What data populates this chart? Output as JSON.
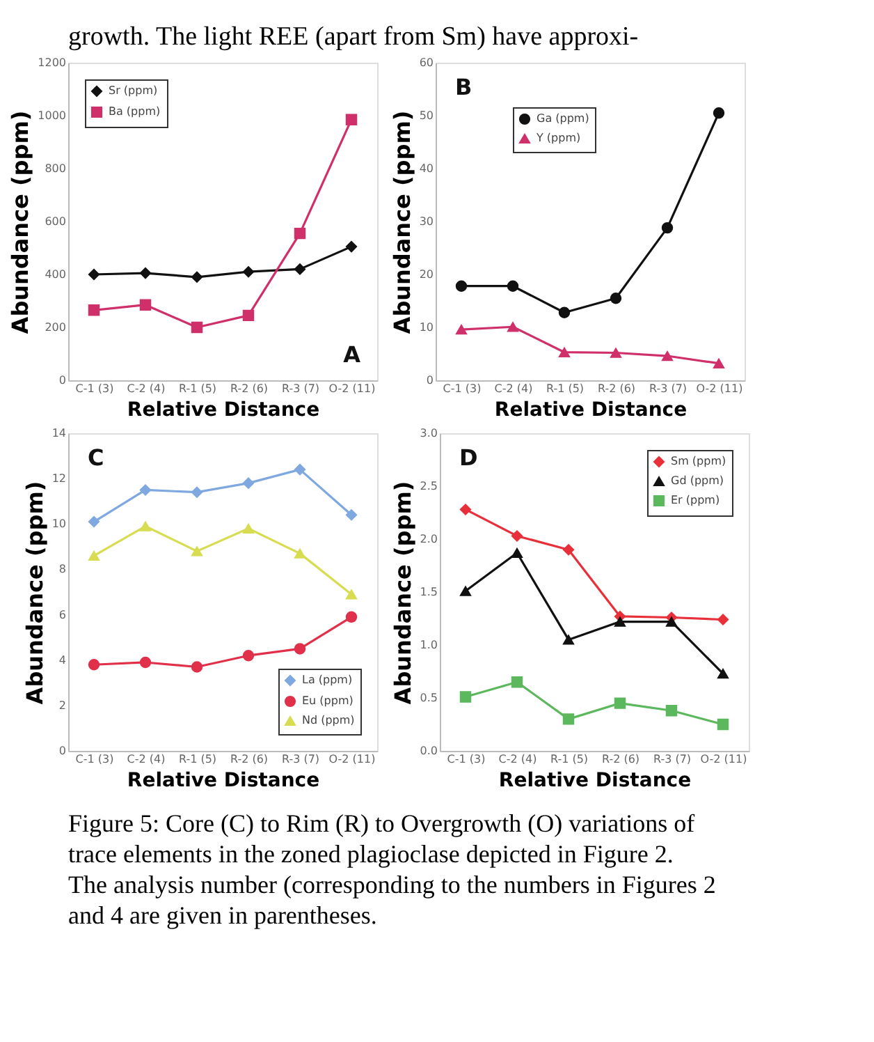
{
  "chart_data": [
    {
      "type": "line",
      "categories": [
        "C-1 (3)",
        "C-2 (4)",
        "R-1 (5)",
        "R-2 (6)",
        "R-3 (7)",
        "O-2 (11)"
      ],
      "xlabel": "Relative Distance",
      "ylabel": "Abundance (ppm)",
      "ylim": [
        0,
        1200
      ],
      "yticks": [
        0,
        200,
        400,
        600,
        800,
        1000,
        1200
      ],
      "grid": false,
      "legend": "top left",
      "annotations": [
        "A",
        "growth. The light REE (apart from Sm) have approxi-"
      ],
      "series": [
        {
          "name": "Sr (ppm)",
          "color": "#111111",
          "marker": "diamond",
          "values": [
            400,
            405,
            390,
            410,
            420,
            505
          ]
        },
        {
          "name": "Ba (ppm)",
          "color": "#d0306a",
          "marker": "square",
          "values": [
            265,
            285,
            200,
            245,
            555,
            985
          ]
        }
      ]
    },
    {
      "type": "line",
      "categories": [
        "C-1 (3)",
        "C-2 (4)",
        "R-1 (5)",
        "R-2 (6)",
        "R-3 (7)",
        "O-2 (11)"
      ],
      "xlabel": "Relative Distance",
      "ylabel": "Abundance (ppm)",
      "ylim": [
        0,
        60
      ],
      "yticks": [
        0,
        10,
        20,
        30,
        40,
        50,
        60
      ],
      "grid": false,
      "legend": "top",
      "annotations": [
        "B"
      ],
      "series": [
        {
          "name": "Ga (ppm)",
          "color": "#111111",
          "marker": "circle",
          "values": [
            17.8,
            17.8,
            12.8,
            15.5,
            28.8,
            50.5
          ]
        },
        {
          "name": "Y (ppm)",
          "color": "#d0306a",
          "marker": "triangle",
          "values": [
            9.6,
            10.1,
            5.3,
            5.2,
            4.6,
            3.2
          ]
        }
      ]
    },
    {
      "type": "line",
      "categories": [
        "C-1 (3)",
        "C-2 (4)",
        "R-1 (5)",
        "R-2 (6)",
        "R-3 (7)",
        "O-2 (11)"
      ],
      "xlabel": "Relative Distance",
      "ylabel": "Abundance (ppm)",
      "ylim": [
        0,
        14
      ],
      "yticks": [
        0,
        2,
        4,
        6,
        8,
        10,
        12,
        14
      ],
      "grid": false,
      "legend": "bottom right",
      "annotations": [
        "C"
      ],
      "series": [
        {
          "name": "La (ppm)",
          "color": "#7fa8e0",
          "marker": "diamond",
          "values": [
            10.1,
            11.5,
            11.4,
            11.8,
            12.4,
            10.4
          ]
        },
        {
          "name": "Eu (ppm)",
          "color": "#e0304a",
          "marker": "circle",
          "values": [
            3.8,
            3.9,
            3.7,
            4.2,
            4.5,
            5.9
          ]
        },
        {
          "name": "Nd (ppm)",
          "color": "#d8dc50",
          "marker": "triangle",
          "values": [
            8.6,
            9.9,
            8.8,
            9.8,
            8.7,
            6.9
          ]
        }
      ]
    },
    {
      "type": "line",
      "categories": [
        "C-1 (3)",
        "C-2 (4)",
        "R-1 (5)",
        "R-2 (6)",
        "R-3 (7)",
        "O-2 (11)"
      ],
      "xlabel": "Relative Distance",
      "ylabel": "Abundance (ppm)",
      "ylim": [
        0,
        3
      ],
      "yticks": [
        {
          "value": 0,
          "label": "0.0"
        },
        {
          "value": 0.5,
          "label": "0.5"
        },
        {
          "value": 1,
          "label": "1.0"
        },
        {
          "value": 1.5,
          "label": "1.5"
        },
        {
          "value": 2,
          "label": "2.0"
        },
        {
          "value": 2.5,
          "label": "2.5"
        },
        {
          "value": 3,
          "label": "3.0"
        }
      ],
      "grid": false,
      "legend": "top right",
      "annotations": [
        "D",
        "Figure 5: Core (C) to Rim (R) to Overgrowth (O) variations of trace elements in the zoned plagioclase depicted in Figure 2.  The analysis number (corresponding to the numbers in Figures 2 and 4 are given in parentheses."
      ],
      "series": [
        {
          "name": "Sm (ppm)",
          "color": "#e8303a",
          "marker": "diamond",
          "values": [
            2.28,
            2.03,
            1.9,
            1.27,
            1.26,
            1.24
          ]
        },
        {
          "name": "Gd (ppm)",
          "color": "#111111",
          "marker": "triangle",
          "values": [
            1.51,
            1.87,
            1.05,
            1.22,
            1.22,
            0.73
          ]
        },
        {
          "name": "Er (ppm)",
          "color": "#5cb85c",
          "marker": "square",
          "values": [
            0.51,
            0.65,
            0.3,
            0.45,
            0.38,
            0.25
          ]
        }
      ]
    }
  ]
}
